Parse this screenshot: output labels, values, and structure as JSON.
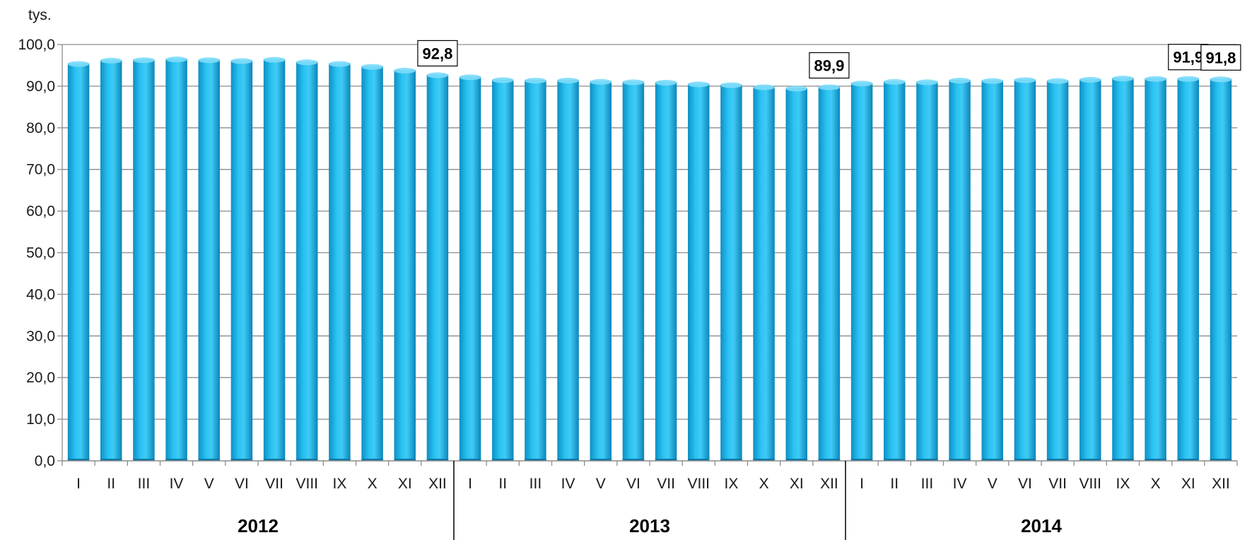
{
  "chart_data": {
    "type": "bar",
    "unit_label": "tys.",
    "ylim": [
      0,
      100
    ],
    "y_ticks": [
      "0,0",
      "10,0",
      "20,0",
      "30,0",
      "40,0",
      "50,0",
      "60,0",
      "70,0",
      "80,0",
      "90,0",
      "100,0"
    ],
    "grid": true,
    "categories": [
      "I",
      "II",
      "III",
      "IV",
      "V",
      "VI",
      "VII",
      "VIII",
      "IX",
      "X",
      "XI",
      "XII",
      "I",
      "II",
      "III",
      "IV",
      "V",
      "VI",
      "VII",
      "VIII",
      "IX",
      "X",
      "XI",
      "XII",
      "I",
      "II",
      "III",
      "IV",
      "V",
      "VI",
      "VII",
      "VIII",
      "IX",
      "X",
      "XI",
      "XII"
    ],
    "groups": [
      {
        "label": "2012",
        "count": 12
      },
      {
        "label": "2013",
        "count": 12
      },
      {
        "label": "2014",
        "count": 12
      }
    ],
    "values": [
      95.5,
      96.3,
      96.4,
      96.6,
      96.4,
      96.2,
      96.5,
      95.9,
      95.5,
      94.8,
      93.9,
      92.8,
      92.3,
      91.6,
      91.5,
      91.5,
      91.2,
      91.1,
      91.0,
      90.6,
      90.4,
      89.9,
      89.6,
      89.9,
      90.8,
      91.2,
      91.1,
      91.5,
      91.4,
      91.6,
      91.4,
      91.7,
      92.0,
      91.9,
      91.9,
      91.8
    ],
    "data_labels": [
      {
        "index": 11,
        "text": "92,8"
      },
      {
        "index": 23,
        "text": "89,9"
      },
      {
        "index": 34,
        "text": "91,9"
      },
      {
        "index": 35,
        "text": "91,8"
      }
    ],
    "bar_color": "#1fb4e8"
  }
}
